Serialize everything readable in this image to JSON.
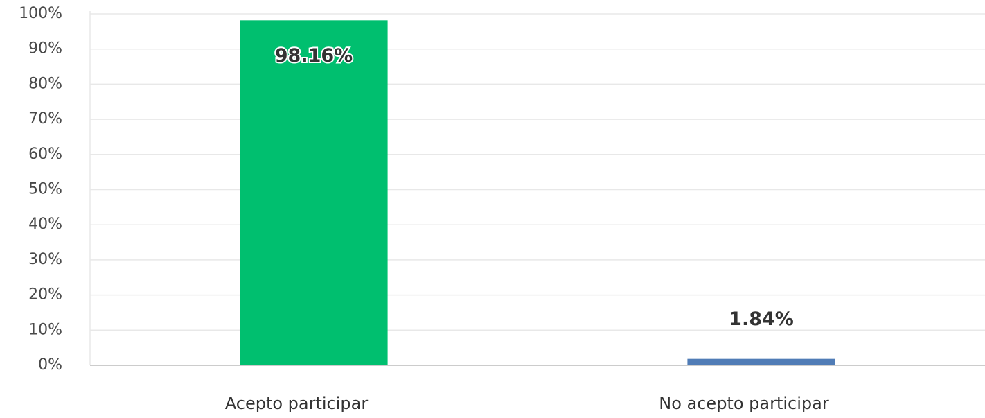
{
  "chart_data": {
    "type": "bar",
    "categories": [
      "Acepto participar",
      "No acepto participar"
    ],
    "values": [
      98.16,
      1.84
    ],
    "value_labels": [
      "98.16%",
      "1.84%"
    ],
    "colors": [
      "#00bf6f",
      "#507cb6"
    ],
    "ylim": [
      0,
      100
    ],
    "yticks": [
      {
        "value": 0,
        "label": "0%"
      },
      {
        "value": 10,
        "label": "10%"
      },
      {
        "value": 20,
        "label": "20%"
      },
      {
        "value": 30,
        "label": "30%"
      },
      {
        "value": 40,
        "label": "40%"
      },
      {
        "value": 50,
        "label": "50%"
      },
      {
        "value": 60,
        "label": "60%"
      },
      {
        "value": 70,
        "label": "70%"
      },
      {
        "value": 80,
        "label": "80%"
      },
      {
        "value": 90,
        "label": "90%"
      },
      {
        "value": 100,
        "label": "100%"
      }
    ],
    "grid": true
  }
}
